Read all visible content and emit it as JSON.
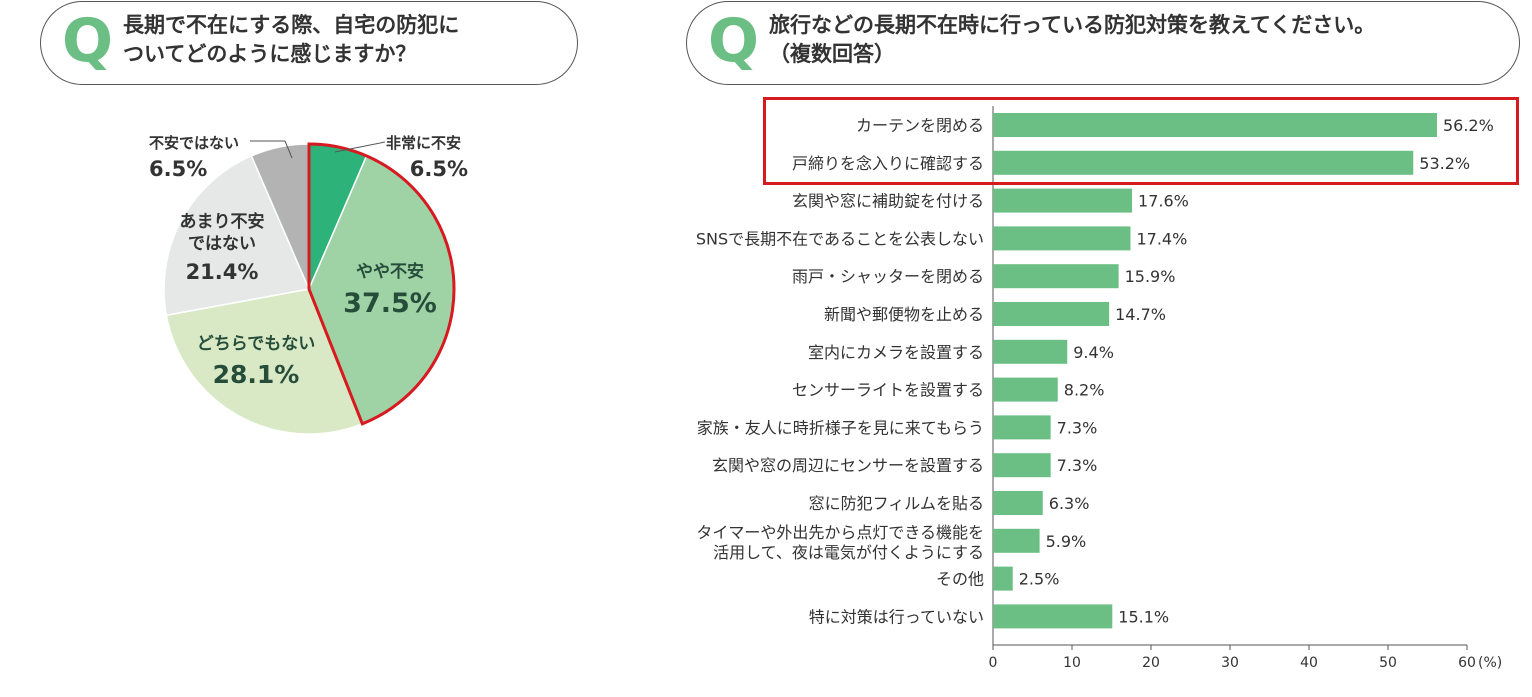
{
  "q1": {
    "mark": "Q",
    "line1": "長期で不在にする際、自宅の防犯に",
    "line2": "ついてどのように感じますか？"
  },
  "q2": {
    "mark": "Q",
    "line1": "旅行などの長期不在時に行っている防犯対策を教えてください。",
    "line2": "（複数回答）"
  },
  "chart_data": [
    {
      "type": "pie",
      "title": "長期で不在にする際、自宅の防犯についてどのように感じますか？",
      "slices": [
        {
          "label": "非常に不安",
          "value": 6.5,
          "value_label": "6.5%",
          "color": "#2db37a"
        },
        {
          "label": "やや不安",
          "value": 37.5,
          "value_label": "37.5%",
          "color": "#9fd3a6"
        },
        {
          "label": "どちらでもない",
          "value": 28.1,
          "value_label": "28.1%",
          "color": "#d9e9c6"
        },
        {
          "label": "あまり不安\nではない",
          "value": 21.4,
          "value_label": "21.4%",
          "color": "#e6e8e8"
        },
        {
          "label": "不安ではない",
          "value": 6.5,
          "value_label": "6.5%",
          "color": "#b3b3b3"
        }
      ],
      "highlighted": [
        "非常に不安",
        "やや不安"
      ],
      "highlight_color": "#d71920"
    },
    {
      "type": "bar",
      "orientation": "horizontal",
      "title": "旅行などの長期不在時に行っている防犯対策を教えてください。（複数回答）",
      "categories": [
        "カーテンを閉める",
        "戸締りを念入りに確認する",
        "玄関や窓に補助錠を付ける",
        "SNSで長期不在であることを公表しない",
        "雨戸・シャッターを閉める",
        "新聞や郵便物を止める",
        "室内にカメラを設置する",
        "センサーライトを設置する",
        "家族・友人に時折様子を見に来てもらう",
        "玄関や窓の周辺にセンサーを設置する",
        "窓に防犯フィルムを貼る",
        "タイマーや外出先から点灯できる機能を\n活用して、夜は電気が付くようにする",
        "その他",
        "特に対策は行っていない"
      ],
      "values": [
        56.2,
        53.2,
        17.6,
        17.4,
        15.9,
        14.7,
        9.4,
        8.2,
        7.3,
        7.3,
        6.3,
        5.9,
        2.5,
        15.1
      ],
      "value_labels": [
        "56.2%",
        "53.2%",
        "17.6%",
        "17.4%",
        "15.9%",
        "14.7%",
        "9.4%",
        "8.2%",
        "7.3%",
        "7.3%",
        "6.3%",
        "5.9%",
        "2.5%",
        "15.1%"
      ],
      "xlim": [
        0,
        60
      ],
      "xticks": [
        "0",
        "10",
        "20",
        "30",
        "40",
        "50",
        "60"
      ],
      "unit": "(%)",
      "bar_color": "#6cbf84",
      "highlighted": [
        "カーテンを閉める",
        "戸締りを念入りに確認する"
      ],
      "highlight_color": "#d71920"
    }
  ]
}
